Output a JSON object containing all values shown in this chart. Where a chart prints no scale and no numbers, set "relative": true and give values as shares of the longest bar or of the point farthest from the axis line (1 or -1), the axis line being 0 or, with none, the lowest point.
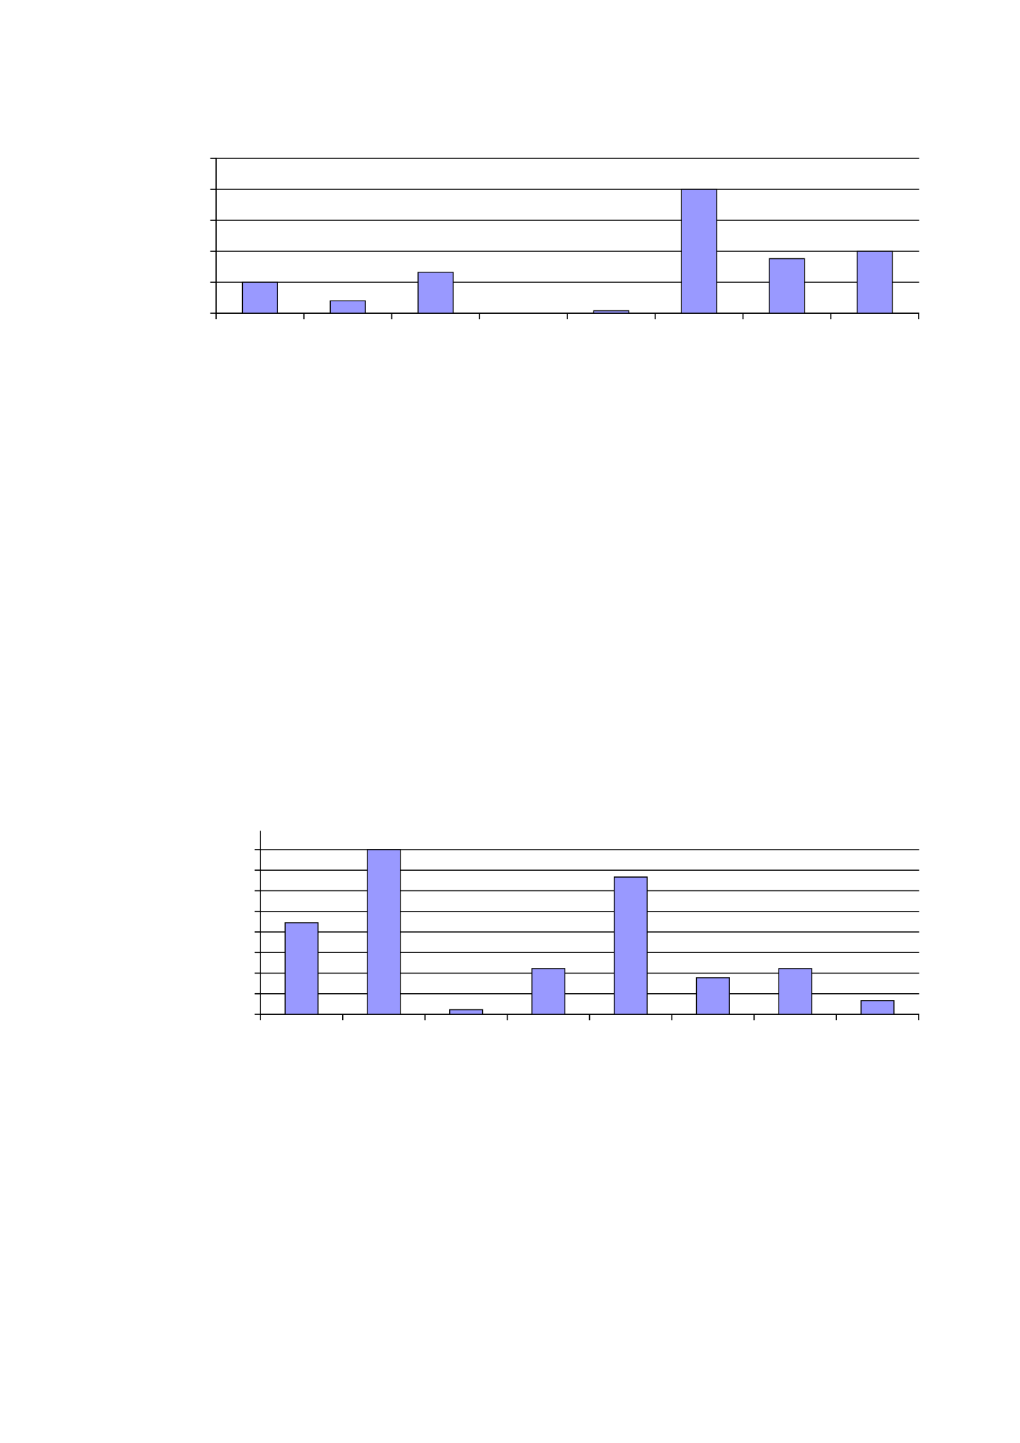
{
  "chart_data": [
    {
      "type": "bar",
      "relative": true,
      "categories": [
        null,
        null,
        null,
        null,
        null,
        null,
        null,
        null
      ],
      "values": [
        0.25,
        0.1,
        0.33,
        null,
        0.02,
        1,
        0.44,
        0.5
      ],
      "color": "#9999ff",
      "ylim": [
        0,
        1.25
      ],
      "grid": "y"
    },
    {
      "type": "bar",
      "relative": true,
      "categories": [
        null,
        null,
        null,
        null,
        null,
        null,
        null,
        null
      ],
      "values": [
        0.556,
        1,
        0.028,
        0.278,
        0.833,
        0.222,
        0.278,
        0.083
      ],
      "color": "#9999ff",
      "ylim": [
        0,
        1.111
      ],
      "grid": "y"
    }
  ]
}
